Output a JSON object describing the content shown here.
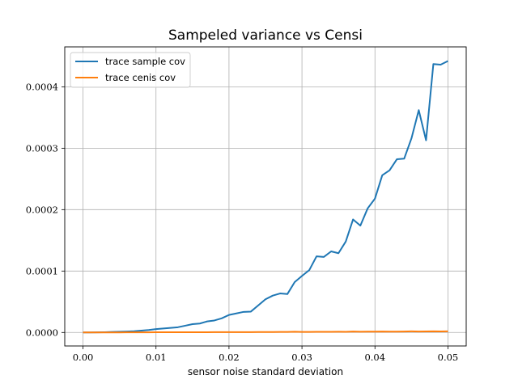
{
  "chart_data": {
    "type": "line",
    "title": "Sampeled variance vs Censi",
    "xlabel": "sensor noise standard deviation",
    "ylabel": "",
    "xlim": [
      -0.0025,
      0.0525
    ],
    "ylim": [
      -2.2e-05,
      0.000465
    ],
    "xticks": [
      0.0,
      0.01,
      0.02,
      0.03,
      0.04,
      0.05
    ],
    "xtick_labels": [
      "0.00",
      "0.01",
      "0.02",
      "0.03",
      "0.04",
      "0.05"
    ],
    "yticks": [
      0.0,
      0.0001,
      0.0002,
      0.0003,
      0.0004
    ],
    "ytick_labels": [
      "0.0000",
      "0.0001",
      "0.0002",
      "0.0003",
      "0.0004"
    ],
    "grid": true,
    "legend_position": "top-left",
    "x": [
      0.0,
      0.001,
      0.002,
      0.003,
      0.004,
      0.005,
      0.006,
      0.007,
      0.008,
      0.009,
      0.01,
      0.011,
      0.012,
      0.013,
      0.014,
      0.015,
      0.016,
      0.017,
      0.018,
      0.019,
      0.02,
      0.021,
      0.022,
      0.023,
      0.024,
      0.025,
      0.026,
      0.027,
      0.028,
      0.029,
      0.03,
      0.031,
      0.032,
      0.033,
      0.034,
      0.035,
      0.036,
      0.037,
      0.038,
      0.039,
      0.04,
      0.041,
      0.042,
      0.043,
      0.044,
      0.045,
      0.046,
      0.047,
      0.048,
      0.049,
      0.05
    ],
    "series": [
      {
        "name": "trace sample cov",
        "color": "#1f77b4",
        "values": [
          0.0,
          0.0,
          2e-07,
          4e-07,
          8e-07,
          1.2e-06,
          1.6e-06,
          2e-06,
          3e-06,
          4e-06,
          5.5e-06,
          6.5e-06,
          7.5e-06,
          8.5e-06,
          1.1e-05,
          1.35e-05,
          1.45e-05,
          1.8e-05,
          1.95e-05,
          2.3e-05,
          2.85e-05,
          3.1e-05,
          3.35e-05,
          3.4e-05,
          4.4e-05,
          5.4e-05,
          6e-05,
          6.35e-05,
          6.25e-05,
          8.2e-05,
          9.2e-05,
          0.0001015,
          0.000124,
          0.000123,
          0.000132,
          0.000129,
          0.000148,
          0.000184,
          0.000174,
          0.000202,
          0.000218,
          0.000256,
          0.000264,
          0.000282,
          0.000283,
          0.000316,
          0.000362,
          0.000313,
          0.000437,
          0.000436,
          0.000442
        ]
      },
      {
        "name": "trace cenis cov",
        "color": "#ff7f0e",
        "values": [
          0.0,
          0.0,
          0.0,
          1e-07,
          1e-07,
          1e-07,
          2e-07,
          2e-07,
          2e-07,
          2e-07,
          3e-07,
          3e-07,
          3e-07,
          3e-07,
          4e-07,
          4e-07,
          4e-07,
          4e-07,
          5e-07,
          5e-07,
          5e-07,
          6e-07,
          6e-07,
          6e-07,
          7e-07,
          7e-07,
          7e-07,
          8e-07,
          8e-07,
          1.2e-06,
          9e-07,
          9e-07,
          1e-06,
          1e-06,
          1.1e-06,
          1.2e-06,
          1.1e-06,
          1.6e-06,
          1.2e-06,
          1.3e-06,
          1.4e-06,
          1.5e-06,
          1.3e-06,
          1.4e-06,
          1.5e-06,
          1.8e-06,
          1.6e-06,
          1.7e-06,
          1.9e-06,
          1.7e-06,
          1.8e-06
        ]
      }
    ]
  }
}
